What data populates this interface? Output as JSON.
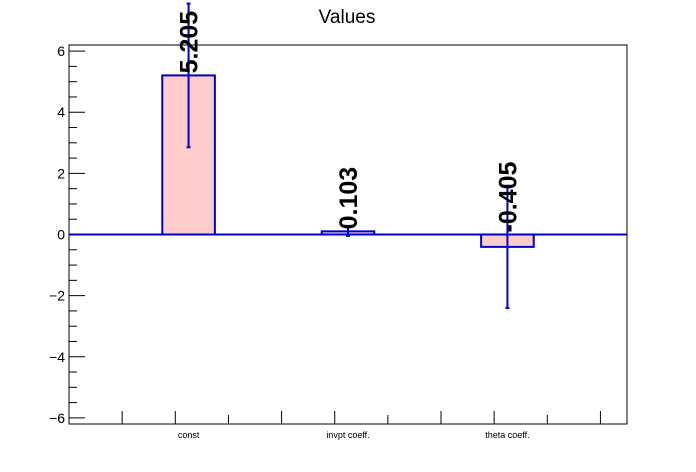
{
  "chart_data": {
    "type": "bar",
    "title": "Values",
    "categories": [
      "const",
      "invpt coeff.",
      "theta coeff."
    ],
    "values": [
      5.205,
      0.103,
      -0.405
    ],
    "value_labels": [
      "5.205",
      "0.103",
      "-0.405"
    ],
    "errors": [
      2.35,
      0.15,
      2.0
    ],
    "ylim": [
      -6.2,
      6.2
    ],
    "y_ticks": [
      -6,
      -4,
      -2,
      0,
      2,
      4,
      6
    ],
    "y_tick_labels": [
      "−6",
      "−4",
      "−2",
      "0",
      "2",
      "4",
      "6"
    ],
    "xlabel": "",
    "ylabel": "",
    "grid": false,
    "colors": {
      "bar_fill": "#ffcccc",
      "bar_edge": "#0000cc",
      "error_bar": "#0000cc",
      "zero_line": "#0000cc",
      "axis": "#000000"
    }
  }
}
